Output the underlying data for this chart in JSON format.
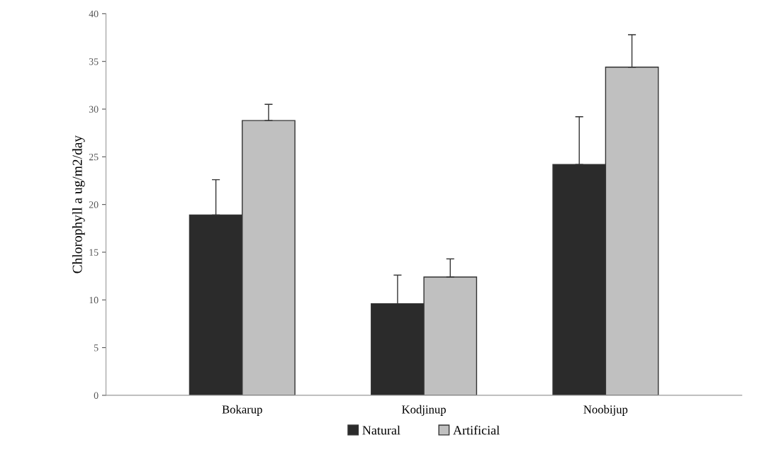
{
  "chart_data": {
    "type": "bar",
    "ylabel": "Chlorophyll a ug/m2/day",
    "categories": [
      "Bokarup",
      "Kodjinup",
      "Noobijup"
    ],
    "series": [
      {
        "name": "Natural",
        "color": "#2b2b2b",
        "values": [
          18.9,
          9.6,
          24.2
        ],
        "errors": [
          [
            18.9,
            22.6
          ],
          [
            9.6,
            12.6
          ],
          [
            24.2,
            29.2
          ]
        ]
      },
      {
        "name": "Artificial",
        "color": "#c0c0c0",
        "values": [
          28.8,
          12.4,
          34.4
        ],
        "errors": [
          [
            28.8,
            30.5
          ],
          [
            12.4,
            14.3
          ],
          [
            34.4,
            37.8
          ]
        ]
      }
    ],
    "ylim": [
      0,
      40
    ],
    "yticks": [
      0,
      5,
      10,
      15,
      20,
      25,
      30,
      35,
      40
    ],
    "grid": false,
    "legend": "bottom"
  }
}
